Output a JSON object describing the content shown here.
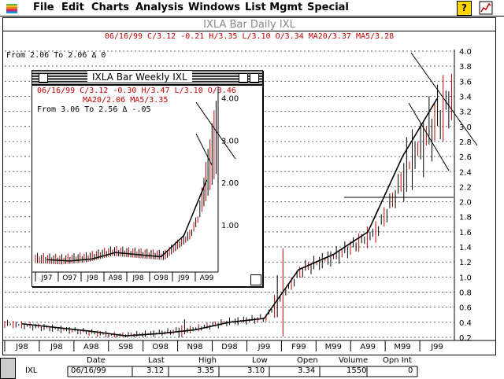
{
  "menubar": {
    "items": [
      "File",
      "Edit",
      "Charts",
      "Analysis",
      "Windows",
      "List Mgmt",
      "Special"
    ],
    "help_label": "?"
  },
  "daily_window": {
    "title": "IXLA Bar Daily  IXL",
    "info": "06/16/99 C/3.12 -0.21 H/3.35 L/3.10 O/3.34 MA20/3.37 MA5/3.28",
    "range": "From  2.06 To  2.06 Δ  0",
    "y_ticks": [
      "4.0",
      "3.8",
      "3.6",
      "3.4",
      "3.2",
      "3.0",
      "2.8",
      "2.6",
      "2.4",
      "2.2",
      "2.0",
      "1.8",
      "1.6",
      "1.4",
      "1.2",
      "1.0",
      "0.8",
      "0.6",
      "0.4",
      "0.2"
    ],
    "x_ticks": [
      "J98",
      "J98",
      "A98",
      "S98",
      "O98",
      "N98",
      "D98",
      "J99",
      "F99",
      "M99",
      "A99",
      "M99",
      "J99"
    ]
  },
  "weekly_window": {
    "title": "IXLA Bar Weekly  IXL",
    "info": "06/16/99 C/3.12 -0.30 H/3.47 L/3.10 O/3.46",
    "info2": "MA20/2.06 MA5/3.35",
    "range": "From  3.06 To  2.56 Δ -.05",
    "y_ticks": [
      "4.00",
      "3.00",
      "2.00",
      "1.00"
    ],
    "x_ticks": [
      "J97",
      "O97",
      "J98",
      "A98",
      "J98",
      "O98",
      "J99",
      "A99"
    ]
  },
  "status": {
    "headers": [
      "Date",
      "Last",
      "High",
      "Low",
      "Open",
      "Volume",
      "Opn Int"
    ],
    "symbol": "IXL",
    "values": [
      "06/16/99",
      "3.12",
      "3.35",
      "3.10",
      "3.34",
      "1550",
      "0"
    ]
  },
  "chart_data": [
    {
      "type": "bar",
      "title": "IXLA Bar Daily  IXL",
      "xlabel": "",
      "ylabel": "",
      "ylim": [
        0.2,
        4.0
      ],
      "categories": [
        "J98",
        "J98",
        "A98",
        "S98",
        "O98",
        "N98",
        "D98",
        "J99",
        "F99",
        "M99",
        "A99",
        "M99",
        "J99"
      ],
      "series": [
        {
          "name": "MA20",
          "values": [
            0.38,
            0.33,
            0.28,
            0.22,
            0.25,
            0.3,
            0.4,
            0.45,
            1.1,
            1.3,
            1.6,
            2.6,
            3.37
          ]
        }
      ]
    },
    {
      "type": "bar",
      "title": "IXLA Bar Weekly  IXL",
      "xlabel": "",
      "ylabel": "",
      "ylim": [
        0.0,
        4.0
      ],
      "categories": [
        "J97",
        "O97",
        "J98",
        "A98",
        "J98",
        "O98",
        "J99",
        "A99"
      ],
      "series": [
        {
          "name": "MA20",
          "values": [
            0.18,
            0.15,
            0.2,
            0.35,
            0.3,
            0.25,
            0.75,
            2.06
          ]
        }
      ]
    }
  ]
}
